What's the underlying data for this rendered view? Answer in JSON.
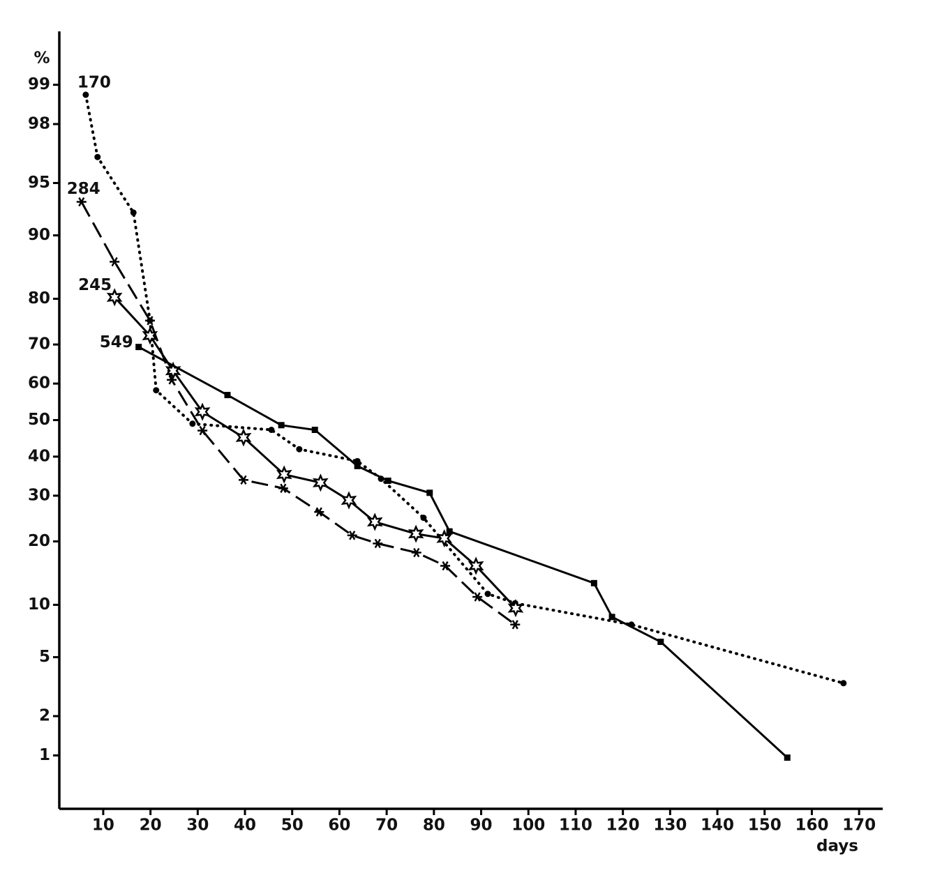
{
  "chart_data": {
    "type": "line",
    "y_label": "%",
    "x_label": "days",
    "yscale": "probit",
    "xlim": [
      1,
      175
    ],
    "xticks": [
      10,
      20,
      30,
      40,
      50,
      60,
      70,
      80,
      90,
      100,
      110,
      120,
      130,
      140,
      150,
      160,
      170
    ],
    "ylim": [
      0.35,
      99.65
    ],
    "yticks": [
      1,
      2,
      5,
      10,
      20,
      30,
      40,
      50,
      60,
      70,
      80,
      90,
      95,
      98,
      99
    ],
    "series": [
      {
        "name": "170",
        "color": "#000000",
        "dash": "dotted",
        "marker": "dot",
        "x": [
          6.3,
          8.8,
          16.4,
          19.9,
          21.2,
          28.9,
          45.6,
          51.5,
          63.8,
          68.8,
          77.8,
          91.4,
          97.2,
          121.8,
          166.7
        ],
        "values": [
          98.8,
          96.6,
          92.5,
          75.5,
          58.2,
          49,
          47.3,
          42,
          38.8,
          34.2,
          24.9,
          11.4,
          10.2,
          7.8,
          3.4
        ]
      },
      {
        "name": "284",
        "color": "#000000",
        "dash": "dashed",
        "marker": "asterisk",
        "x": [
          5.4,
          12.4,
          19.9,
          24.5,
          31,
          39.7,
          48.1,
          55.7,
          62.7,
          68.1,
          76.3,
          82.4,
          89.2,
          97.2
        ],
        "values": [
          93.5,
          86.4,
          75.5,
          61,
          47.1,
          33.9,
          31.8,
          26.2,
          21.2,
          19.6,
          17.9,
          15.6,
          11,
          7.8
        ]
      },
      {
        "name": "245",
        "color": "#000000",
        "dash": "solid",
        "marker": "star",
        "x": [
          12.4,
          19.9,
          24.8,
          31,
          39.7,
          48.3,
          56,
          62,
          67.5,
          76.2,
          82.2,
          88.9,
          97.3
        ],
        "values": [
          80.3,
          72.1,
          63.4,
          52.3,
          45.2,
          35.3,
          33.2,
          28.9,
          24,
          21.5,
          20.6,
          15.6,
          9.6
        ]
      },
      {
        "name": "549",
        "color": "#000000",
        "dash": "solid",
        "marker": "square",
        "x": [
          17.5,
          36.3,
          47.7,
          54.8,
          63.8,
          70.3,
          79.1,
          83.3,
          113.9,
          117.7,
          128,
          154.8
        ],
        "values": [
          69.4,
          56.9,
          48.6,
          47.3,
          37.5,
          33.7,
          30.7,
          22,
          12.9,
          8.6,
          6.2,
          0.96
        ]
      }
    ]
  }
}
